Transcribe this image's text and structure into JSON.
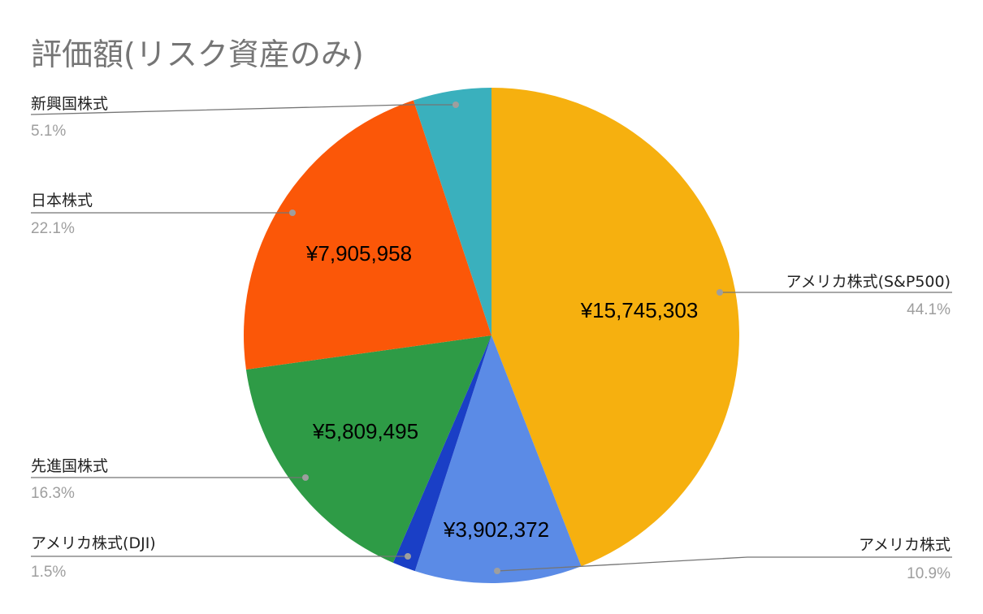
{
  "chart_data": {
    "type": "pie",
    "title": "評価額(リスク資産のみ)",
    "slices": [
      {
        "label": "アメリカ株式(S&P500)",
        "percent_label": "44.1%",
        "percent": 44.1,
        "value_label": "¥15,745,303",
        "color": "#f6b00f"
      },
      {
        "label": "アメリカ株式",
        "percent_label": "10.9%",
        "percent": 10.9,
        "value_label": "¥3,902,372",
        "color": "#5b8be6"
      },
      {
        "label": "アメリカ株式(DJI)",
        "percent_label": "1.5%",
        "percent": 1.5,
        "value_label": "",
        "color": "#1a3fc6"
      },
      {
        "label": "先進国株式",
        "percent_label": "16.3%",
        "percent": 16.3,
        "value_label": "¥5,809,495",
        "color": "#2e9b46"
      },
      {
        "label": "日本株式",
        "percent_label": "22.1%",
        "percent": 22.1,
        "value_label": "¥7,905,958",
        "color": "#fb5708"
      },
      {
        "label": "新興国株式",
        "percent_label": "5.1%",
        "percent": 5.1,
        "value_label": "",
        "color": "#3ab0bd"
      }
    ],
    "legend": "none"
  }
}
